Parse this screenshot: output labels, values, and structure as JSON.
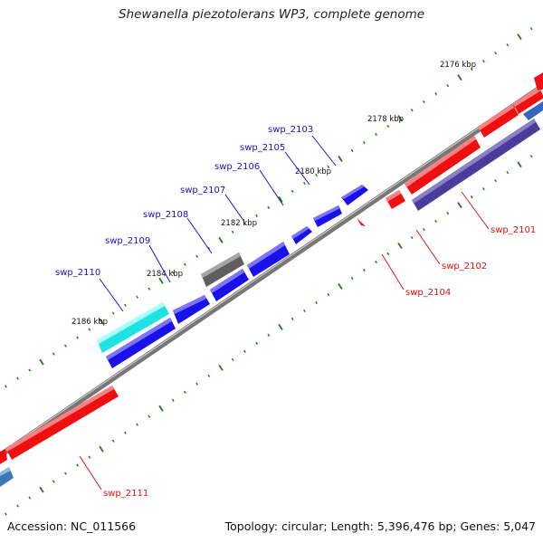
{
  "title": "Shewanella piezotolerans WP3, complete genome",
  "footer": {
    "accession": "Accession: NC_011566",
    "summary": "Topology: circular; Length: 5,396,476 bp; Genes: 5,047"
  },
  "colors": {
    "forward_gene": "#1a10e8",
    "reverse_gene": "#ee1010",
    "highlight_gene": "#22e8e8",
    "gray_gene": "#666666",
    "purple_gene": "#4a3c9a",
    "backbone": "#7a7a7a",
    "tick": "#1f7a1f",
    "forward_label": "#1a10c8",
    "reverse_label": "#dd1010"
  },
  "kbp_ticks": [
    "2176 kbp",
    "2178 kbp",
    "2180 kbp",
    "2182 kbp",
    "2184 kbp",
    "2186 kbp"
  ],
  "genes": [
    {
      "label": "swp_2101",
      "strand": "reverse"
    },
    {
      "label": "swp_2102",
      "strand": "reverse"
    },
    {
      "label": "swp_2103",
      "strand": "forward"
    },
    {
      "label": "swp_2104",
      "strand": "reverse"
    },
    {
      "label": "swp_2105",
      "strand": "forward"
    },
    {
      "label": "swp_2106",
      "strand": "forward"
    },
    {
      "label": "swp_2107",
      "strand": "forward"
    },
    {
      "label": "swp_2108",
      "strand": "forward"
    },
    {
      "label": "swp_2109",
      "strand": "forward"
    },
    {
      "label": "swp_2110",
      "strand": "forward"
    },
    {
      "label": "swp_2111",
      "strand": "reverse"
    }
  ]
}
